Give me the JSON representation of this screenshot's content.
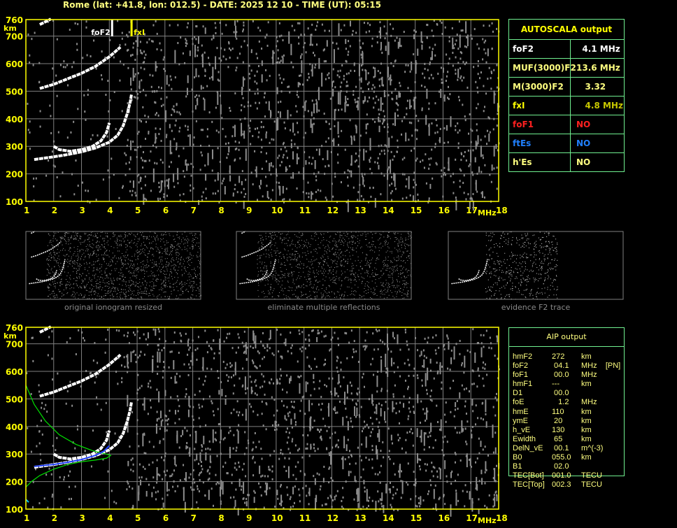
{
  "header": {
    "title": "Rome (lat: +41.8, lon: 012.5) - DATE: 2025 12 10 - TIME (UT): 05:15"
  },
  "colors": {
    "axis": "#ffff00",
    "grid": "#808080",
    "trace": "#ffffff",
    "noise": "#8c8c8c",
    "model": "#00e000",
    "fit": "#2040ff",
    "table_border": "#70f090"
  },
  "chart_data": [
    {
      "type": "scatter",
      "title": "",
      "xlabel": "MHz",
      "ylabel": "km",
      "xlim": [
        1,
        18
      ],
      "ylim": [
        100,
        760
      ],
      "xticks": [
        "1",
        "2",
        "3",
        "4",
        "5",
        "6",
        "7",
        "8",
        "9",
        "10",
        "11",
        "12",
        "13",
        "14",
        "15",
        "16",
        "17",
        "18"
      ],
      "yticks": [
        "100",
        "200",
        "300",
        "400",
        "500",
        "600",
        "700",
        "760"
      ],
      "grid": true,
      "markers": [
        {
          "label": "foF2",
          "x": 4.1,
          "color": "#ffffff"
        },
        {
          "label": "fxI",
          "x": 4.8,
          "color": "#ffff00"
        }
      ],
      "traces": [
        {
          "points": [
            [
              1.3,
              252
            ],
            [
              2,
              262
            ],
            [
              2.5,
              270
            ],
            [
              3,
              280
            ],
            [
              3.5,
              294
            ],
            [
              4,
              315
            ],
            [
              4.3,
              340
            ],
            [
              4.5,
              375
            ],
            [
              4.65,
              420
            ],
            [
              4.75,
              460
            ],
            [
              4.8,
              490
            ]
          ]
        },
        {
          "points": [
            [
              2,
              300
            ],
            [
              2.2,
              288
            ],
            [
              2.6,
              282
            ],
            [
              3,
              288
            ],
            [
              3.4,
              300
            ],
            [
              3.7,
              320
            ],
            [
              3.9,
              350
            ],
            [
              4.0,
              385
            ]
          ]
        },
        {
          "points": [
            [
              1.5,
              510
            ],
            [
              2,
              525
            ],
            [
              2.5,
              545
            ],
            [
              3,
              565
            ],
            [
              3.5,
              590
            ],
            [
              4,
              625
            ],
            [
              4.4,
              660
            ]
          ]
        },
        {
          "points": [
            [
              1.5,
              742
            ],
            [
              1.7,
              752
            ],
            [
              1.9,
              762
            ]
          ]
        }
      ]
    },
    {
      "type": "scatter",
      "title": "",
      "xlabel": "MHz",
      "ylabel": "km",
      "xlim": [
        1,
        18
      ],
      "ylim": [
        100,
        760
      ],
      "xticks": [
        "1",
        "2",
        "3",
        "4",
        "5",
        "6",
        "7",
        "8",
        "9",
        "10",
        "11",
        "12",
        "13",
        "14",
        "15",
        "16",
        "17",
        "18"
      ],
      "yticks": [
        "100",
        "200",
        "300",
        "400",
        "500",
        "600",
        "700",
        "760"
      ],
      "grid": true,
      "model_profile": [
        [
          1,
          550
        ],
        [
          1.3,
          480
        ],
        [
          1.7,
          420
        ],
        [
          2.2,
          370
        ],
        [
          2.8,
          335
        ],
        [
          3.4,
          312
        ],
        [
          3.8,
          302
        ],
        [
          4.05,
          295
        ],
        [
          3.9,
          285
        ],
        [
          3.5,
          278
        ],
        [
          3,
          272
        ],
        [
          2.5,
          262
        ],
        [
          2,
          245
        ],
        [
          1.5,
          222
        ],
        [
          1.2,
          200
        ],
        [
          1,
          180
        ]
      ],
      "fit_trace": [
        [
          1.3,
          255
        ],
        [
          2,
          262
        ],
        [
          2.5,
          270
        ],
        [
          3,
          280
        ],
        [
          3.5,
          295
        ],
        [
          3.8,
          310
        ],
        [
          4.0,
          330
        ]
      ]
    }
  ],
  "autoscala": {
    "title": "AUTOSCALA output",
    "rows": [
      {
        "k": "foF2",
        "v": "  4.1 MHz",
        "ck": "#ffffff",
        "cv": "#ffffff"
      },
      {
        "k": "MUF(3000)F2",
        "v": "13.6 MHz",
        "ck": "#ffff80",
        "cv": "#ffff80"
      },
      {
        "k": "M(3000)F2",
        "v": "   3.32",
        "ck": "#ffff80",
        "cv": "#ffff80"
      },
      {
        "k": "fxI",
        "v": "   4.8 MHz",
        "ck": "#ffff00",
        "cv": "#c8c800"
      },
      {
        "k": "foF1",
        "v": "NO",
        "ck": "#ff2020",
        "cv": "#ff2020"
      },
      {
        "k": "ftEs",
        "v": "NO",
        "ck": "#2080ff",
        "cv": "#2080ff"
      },
      {
        "k": "h'Es",
        "v": "NO",
        "ck": "#ffff80",
        "cv": "#ffff80"
      }
    ]
  },
  "aip": {
    "title": "AIP output",
    "rows": [
      [
        "hmF2",
        "272",
        "km"
      ],
      [
        "foF2",
        " 04.1",
        "MHz    [PN]"
      ],
      [
        "foF1",
        " 00.0",
        "MHz"
      ],
      [
        "hmF1",
        "---",
        "km"
      ],
      [
        "D1",
        " 00.0",
        ""
      ],
      [
        "foE",
        "   1.2",
        "MHz"
      ],
      [
        "hmE",
        "110",
        "km"
      ],
      [
        "ymE",
        " 20",
        "km"
      ],
      [
        "h_vE",
        "130",
        "km"
      ],
      [
        "Ewidth",
        " 65",
        "km"
      ],
      [
        "DelN_vE",
        " 00.1",
        "m^(-3)"
      ],
      [
        "B0",
        "055.0",
        "km"
      ],
      [
        "B1",
        " 02.0",
        ""
      ],
      [
        "TEC[Bot]",
        "001.0",
        "TECU"
      ],
      [
        "TEC[Top]",
        "002.3",
        "TECU"
      ]
    ]
  },
  "thumbnails": [
    {
      "label": "original ionogram resized"
    },
    {
      "label": "eliminate multiple reflections"
    },
    {
      "label": "evidence F2 trace"
    }
  ]
}
